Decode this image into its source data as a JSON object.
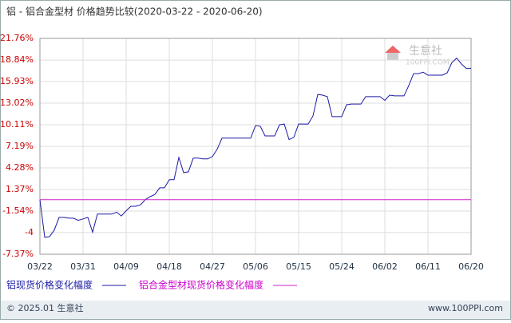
{
  "chart_data": {
    "type": "line",
    "title": "铝 - 铝合金型材 价格趋势比较(2020-03-22 - 2020-06-20)",
    "categories": [
      "03/22",
      null,
      null,
      null,
      null,
      null,
      null,
      null,
      null,
      "03/31",
      null,
      null,
      null,
      null,
      null,
      null,
      null,
      null,
      "04/09",
      null,
      null,
      null,
      null,
      null,
      null,
      null,
      null,
      "04/18",
      null,
      null,
      null,
      null,
      null,
      null,
      null,
      null,
      "04/27",
      null,
      null,
      null,
      null,
      null,
      null,
      null,
      null,
      "05/06",
      null,
      null,
      null,
      null,
      null,
      null,
      null,
      null,
      "05/15",
      null,
      null,
      null,
      null,
      null,
      null,
      null,
      null,
      "05/24",
      null,
      null,
      null,
      null,
      null,
      null,
      null,
      null,
      "06/02",
      null,
      null,
      null,
      null,
      null,
      null,
      null,
      null,
      "06/11",
      null,
      null,
      null,
      null,
      null,
      null,
      null,
      null,
      "06/20"
    ],
    "series": [
      {
        "name": "铝现货价格变化幅度",
        "color": "#1a1aa6",
        "values": [
          0,
          -5.08,
          -5,
          -4.1,
          -2.4,
          -2.4,
          -2.5,
          -2.5,
          -2.8,
          -2.6,
          -2.4,
          -4.4,
          -1.95,
          -1.95,
          -1.95,
          -1.95,
          -1.7,
          -2.2,
          -1.5,
          -0.9,
          -0.9,
          -0.7,
          0,
          0.4,
          0.7,
          1.6,
          1.6,
          2.7,
          2.7,
          5.7,
          3.65,
          3.75,
          5.6,
          5.6,
          5.5,
          5.5,
          5.8,
          6.8,
          8.3,
          8.3,
          8.3,
          8.3,
          8.3,
          8.3,
          8.3,
          10,
          9.9,
          8.6,
          8.6,
          8.6,
          10.1,
          10.2,
          8.1,
          8.4,
          10.2,
          10.2,
          10.2,
          11.3,
          14.2,
          14.1,
          13.9,
          11.2,
          11.2,
          11.2,
          12.8,
          12.9,
          12.9,
          12.9,
          13.9,
          13.9,
          13.9,
          13.9,
          13.4,
          14.1,
          14,
          14,
          14,
          15.4,
          17,
          17,
          17.2,
          16.8,
          16.8,
          16.8,
          16.8,
          17.1,
          18.5,
          19.1,
          18.3,
          17.7,
          17.7
        ]
      },
      {
        "name": "铝合金型材现货价格变化幅度",
        "color": "#cc22cc",
        "values": [
          0,
          0,
          0,
          0,
          0,
          0,
          0,
          0,
          0,
          0,
          0,
          0,
          0,
          0,
          0,
          0,
          0,
          0,
          0,
          0,
          0,
          0,
          0,
          0,
          0,
          0,
          0,
          0,
          0,
          0,
          0,
          0,
          0,
          0,
          0,
          0,
          0,
          0,
          0,
          0,
          0,
          0,
          0,
          0,
          0,
          0,
          0,
          0,
          0,
          0,
          0,
          0,
          0,
          0,
          0,
          0,
          0,
          0,
          0,
          0,
          0,
          0,
          0,
          0,
          0,
          0,
          0,
          0,
          0,
          0,
          0,
          0,
          0,
          0,
          0,
          0,
          0,
          0,
          0,
          0,
          0,
          0,
          0,
          0,
          0,
          0,
          0,
          0,
          0,
          0,
          0
        ]
      }
    ],
    "ylim": [
      -7.37,
      21.76
    ],
    "yticks": [
      {
        "value": -7.37,
        "label": "-7.37%"
      },
      {
        "value": -4.45,
        "label": "-4"
      },
      {
        "value": -1.54,
        "label": "-1.54%"
      },
      {
        "value": 1.37,
        "label": "1.37%"
      },
      {
        "value": 4.28,
        "label": "4.28%"
      },
      {
        "value": 7.19,
        "label": "7.19%"
      },
      {
        "value": 10.11,
        "label": "10.11%"
      },
      {
        "value": 13.02,
        "label": "13.02%"
      },
      {
        "value": 15.93,
        "label": "15.93%"
      },
      {
        "value": 18.84,
        "label": "18.84%"
      },
      {
        "value": 21.76,
        "label": "21.76%"
      }
    ],
    "grid": true,
    "watermark": {
      "name": "生意社",
      "site": "100PPI.COM"
    },
    "footer": {
      "copyright": "© 2025.01 生意社",
      "url": "www.100PPI.com"
    }
  }
}
